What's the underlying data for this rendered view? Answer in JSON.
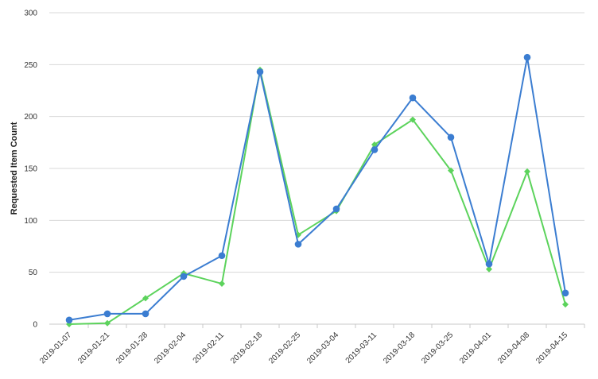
{
  "chart_data": {
    "type": "line",
    "title": "",
    "xlabel": "",
    "ylabel": "Requested Item Count",
    "ylim": [
      0,
      300
    ],
    "yticks": [
      0,
      50,
      100,
      150,
      200,
      250,
      300
    ],
    "grid": "horizontal",
    "legend": "none",
    "categories": [
      "2019-01-07",
      "2019-01-21",
      "2019-01-28",
      "2019-02-04",
      "2019-02-11",
      "2019-02-18",
      "2019-02-25",
      "2019-03-04",
      "2019-03-11",
      "2019-03-18",
      "2019-03-25",
      "2019-04-01",
      "2019-04-08",
      "2019-04-15"
    ],
    "series": [
      {
        "color": "#5cd35c",
        "marker": "diamond",
        "values": [
          0,
          1,
          25,
          49,
          39,
          245,
          86,
          109,
          173,
          197,
          148,
          53,
          147,
          19
        ]
      },
      {
        "color": "#3b7dd1",
        "marker": "circle",
        "values": [
          4,
          10,
          10,
          46,
          66,
          243,
          77,
          111,
          168,
          218,
          180,
          58,
          257,
          30
        ]
      }
    ],
    "colors": {
      "grid": "#d8d8d8",
      "axis": "#c8c8c8",
      "text": "#333333"
    }
  }
}
